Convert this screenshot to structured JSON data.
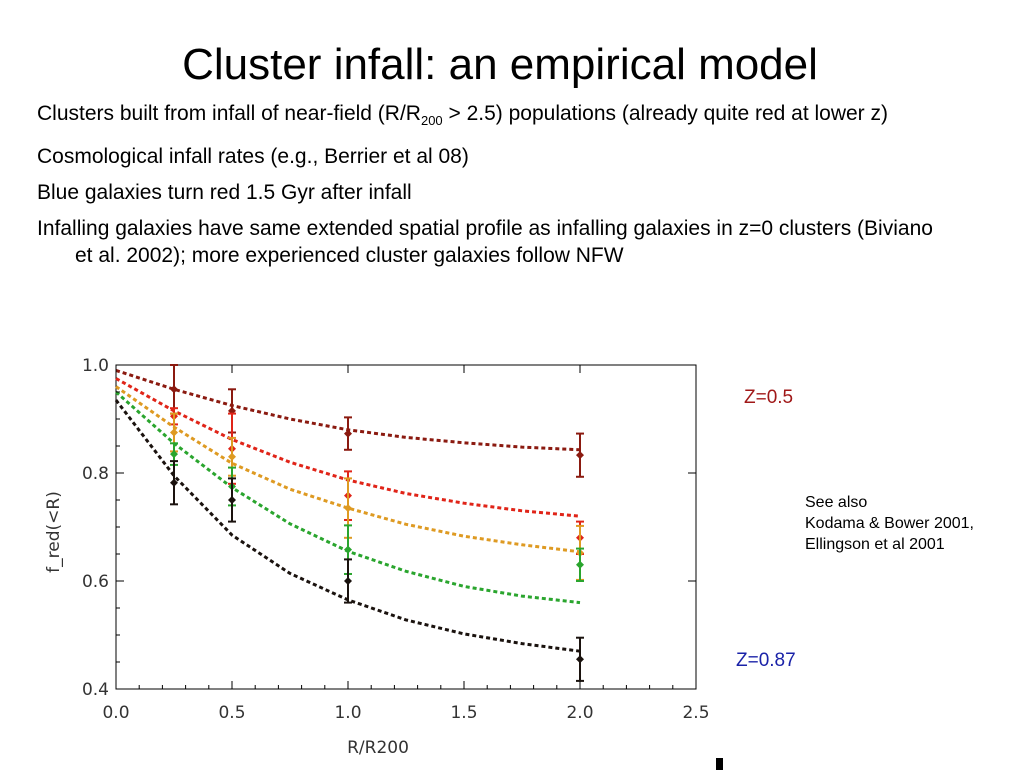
{
  "slide": {
    "title": "Cluster infall: an empirical model",
    "bullets": [
      {
        "pre": "Clusters built from infall of near-field (R/R",
        "sub": "200",
        "post": " > 2.5) populations (already quite red at lower z)"
      },
      {
        "pre": "Cosmological infall rates (e.g., Berrier et al 08)"
      },
      {
        "pre": "Blue galaxies turn red 1.5 Gyr after infall"
      },
      {
        "pre": "Infalling galaxies have same extended spatial profile as infalling galaxies in z=0 clusters (Biviano et al. 2002); more experienced cluster galaxies follow NFW"
      }
    ],
    "annotations": {
      "z_high_label": "Z=0.5",
      "z_low_label": "Z=0.87",
      "see_also": [
        "See also",
        "Kodama & Bower 2001,",
        "Ellingson et al 2001"
      ]
    }
  },
  "chart_data": {
    "type": "scatter",
    "xlabel": "R/R200",
    "ylabel": "f_red(<R)",
    "xlim": [
      0.0,
      2.5
    ],
    "ylim": [
      0.4,
      1.0
    ],
    "xticks": [
      "0.0",
      "0.5",
      "1.0",
      "1.5",
      "2.0",
      "2.5"
    ],
    "yticks": [
      "0.4",
      "0.6",
      "0.8",
      "1.0"
    ],
    "grid": false,
    "series": [
      {
        "color": "#8b1a10",
        "model_x": [
          0.0,
          0.25,
          0.5,
          0.75,
          1.0,
          1.25,
          1.5,
          1.75,
          2.0
        ],
        "model_y": [
          0.99,
          0.955,
          0.925,
          0.9,
          0.88,
          0.866,
          0.856,
          0.848,
          0.843
        ],
        "points": [
          {
            "x": 0.25,
            "y": 0.955,
            "err": 0.045
          },
          {
            "x": 0.5,
            "y": 0.915,
            "err": 0.04
          },
          {
            "x": 1.0,
            "y": 0.873,
            "err": 0.03
          },
          {
            "x": 2.0,
            "y": 0.833,
            "err": 0.04
          }
        ]
      },
      {
        "color": "#e02418",
        "model_x": [
          0.0,
          0.25,
          0.5,
          0.75,
          1.0,
          1.25,
          1.5,
          1.75,
          2.0
        ],
        "model_y": [
          0.975,
          0.915,
          0.862,
          0.82,
          0.787,
          0.762,
          0.744,
          0.73,
          0.72
        ],
        "points": [
          {
            "x": 0.25,
            "y": 0.905,
            "err": 0.015
          },
          {
            "x": 0.5,
            "y": 0.845,
            "err": 0.065
          },
          {
            "x": 1.0,
            "y": 0.758,
            "err": 0.045
          },
          {
            "x": 2.0,
            "y": 0.68,
            "err": 0.03
          }
        ]
      },
      {
        "color": "#de9a22",
        "model_x": [
          0.0,
          0.25,
          0.5,
          0.75,
          1.0,
          1.25,
          1.5,
          1.75,
          2.0
        ],
        "model_y": [
          0.96,
          0.885,
          0.818,
          0.77,
          0.735,
          0.705,
          0.683,
          0.667,
          0.654
        ],
        "points": [
          {
            "x": 0.25,
            "y": 0.875,
            "err": 0.035
          },
          {
            "x": 0.5,
            "y": 0.83,
            "err": 0.035
          },
          {
            "x": 1.0,
            "y": 0.735,
            "err": 0.055
          },
          {
            "x": 2.0,
            "y": 0.652,
            "err": 0.05
          }
        ]
      },
      {
        "color": "#2aa52e",
        "model_x": [
          0.0,
          0.25,
          0.5,
          0.75,
          1.0,
          1.25,
          1.5,
          1.75,
          2.0
        ],
        "model_y": [
          0.95,
          0.855,
          0.773,
          0.706,
          0.655,
          0.618,
          0.59,
          0.572,
          0.56
        ],
        "points": [
          {
            "x": 0.25,
            "y": 0.835,
            "err": 0.02
          },
          {
            "x": 0.5,
            "y": 0.775,
            "err": 0.035
          },
          {
            "x": 1.0,
            "y": 0.658,
            "err": 0.045
          },
          {
            "x": 2.0,
            "y": 0.63,
            "err": 0.03
          }
        ]
      },
      {
        "color": "#1a120e",
        "model_x": [
          0.0,
          0.25,
          0.5,
          0.75,
          1.0,
          1.25,
          1.5,
          1.75,
          2.0
        ],
        "model_y": [
          0.935,
          0.795,
          0.685,
          0.614,
          0.565,
          0.528,
          0.502,
          0.484,
          0.47
        ],
        "points": [
          {
            "x": 0.25,
            "y": 0.782,
            "err": 0.04
          },
          {
            "x": 0.5,
            "y": 0.75,
            "err": 0.04
          },
          {
            "x": 1.0,
            "y": 0.6,
            "err": 0.04
          },
          {
            "x": 2.0,
            "y": 0.455,
            "err": 0.04
          }
        ]
      }
    ]
  }
}
